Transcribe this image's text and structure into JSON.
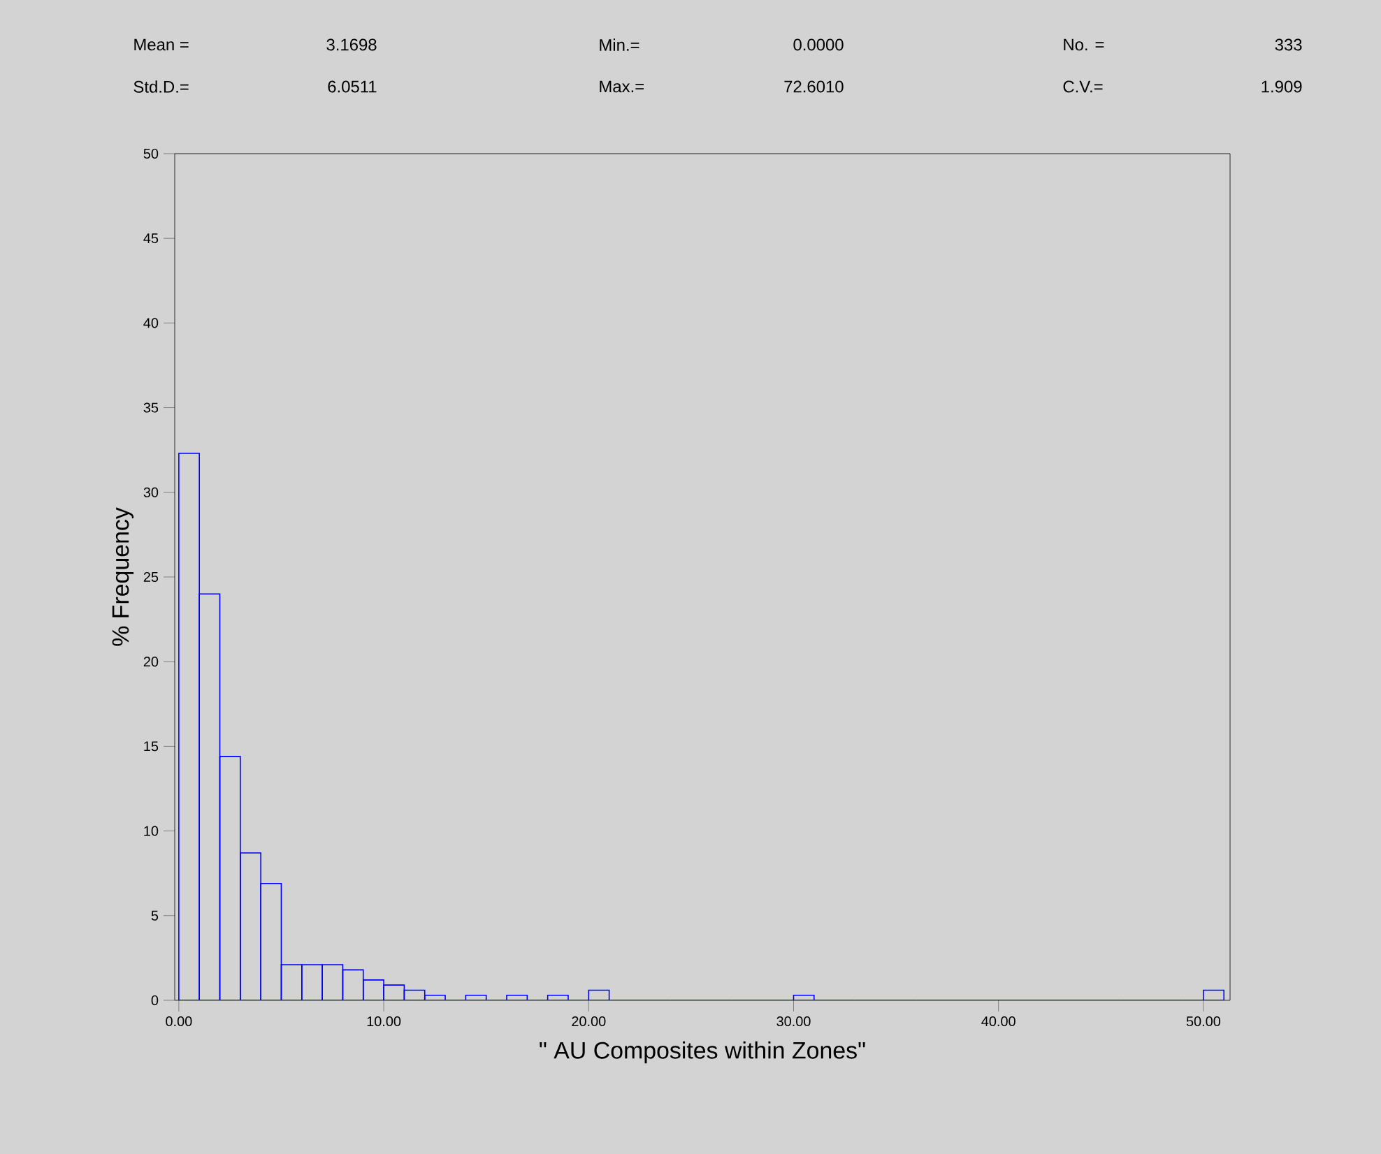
{
  "chart_data": {
    "type": "histogram",
    "xlabel": "\" AU Composites within Zones\"",
    "ylabel": "% Frequency",
    "color": "#0000ff",
    "annotations": [
      "Mean =",
      "3.1698",
      "Min.=",
      "0.0000",
      "No. =",
      "333",
      "Std.D.=",
      "6.0511",
      "Max.=",
      "72.6010",
      "C.V.=",
      "1.909"
    ],
    "bins": [
      0,
      1,
      2,
      3,
      4,
      5,
      6,
      7,
      8,
      9,
      10,
      11,
      12,
      13,
      14,
      15,
      16,
      17,
      18,
      19,
      20,
      21,
      22,
      23,
      24,
      25,
      26,
      27,
      28,
      29,
      30,
      31,
      32,
      33,
      34,
      35,
      36,
      37,
      38,
      39,
      40,
      41,
      42,
      43,
      44,
      45,
      46,
      47,
      48,
      49,
      50,
      51
    ],
    "values": [
      32.3,
      24.0,
      14.4,
      8.7,
      6.9,
      2.1,
      2.1,
      2.1,
      1.8,
      1.2,
      0.9,
      0.6,
      0.3,
      0,
      0.3,
      0,
      0.3,
      0,
      0.3,
      0,
      0.6,
      0,
      0,
      0,
      0,
      0,
      0,
      0,
      0,
      0,
      0.3,
      0,
      0,
      0,
      0,
      0,
      0,
      0,
      0,
      0,
      0,
      0,
      0,
      0,
      0,
      0,
      0,
      0,
      0,
      0,
      0.6
    ],
    "xlim": [
      -0.2,
      51.3
    ],
    "ylim": [
      0,
      50
    ],
    "xticks": [
      {
        "value": 0,
        "label": "0.00"
      },
      {
        "value": 10,
        "label": "10.00"
      },
      {
        "value": 20,
        "label": "20.00"
      },
      {
        "value": 30,
        "label": "30.00"
      },
      {
        "value": 40,
        "label": "40.00"
      },
      {
        "value": 50,
        "label": "50.00"
      }
    ],
    "yticks": [
      0,
      5,
      10,
      15,
      20,
      25,
      30,
      35,
      40,
      45,
      50
    ]
  }
}
